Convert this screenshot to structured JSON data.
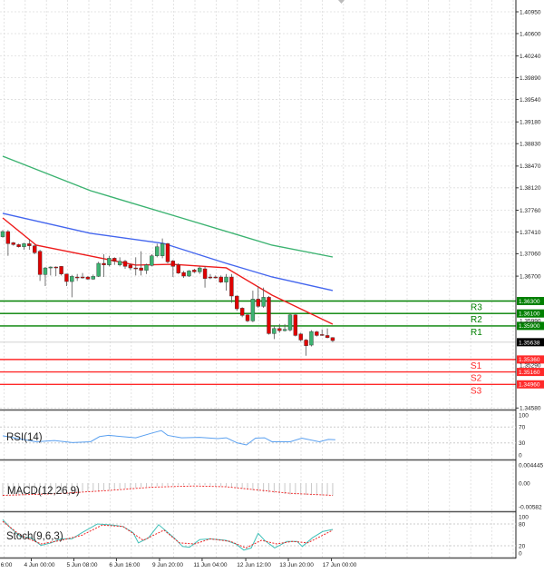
{
  "chart_data": [
    {
      "type": "candlestick",
      "title": "",
      "ylim": [
        1.344,
        1.411
      ],
      "y_ticks": [
        "1.40950",
        "1.40600",
        "1.40240",
        "1.39890",
        "1.39540",
        "1.39180",
        "1.38830",
        "1.38470",
        "1.38120",
        "1.37760",
        "1.37410",
        "1.37060",
        "1.36700",
        "1.34580"
      ],
      "extra_axis_labels": [
        "1.35990",
        "1.35290"
      ],
      "x_tick_labels": [
        {
          "idx": 0.7,
          "label": "6:00"
        },
        {
          "idx": 6.9,
          "label": "4 Jun 00:00"
        },
        {
          "idx": 14.9,
          "label": "5 Jun 08:00"
        },
        {
          "idx": 22.9,
          "label": "6 Jun 16:00"
        },
        {
          "idx": 31.0,
          "label": "9 Jun 20:00"
        },
        {
          "idx": 39.0,
          "label": "11 Jun 04:00"
        },
        {
          "idx": 47.2,
          "label": "12 Jun 12:00"
        },
        {
          "idx": 55.2,
          "label": "13 Jun 20:00"
        },
        {
          "idx": 63.3,
          "label": "17 Jun 00:00"
        }
      ],
      "current_price": "1.35638",
      "levels": [
        {
          "name": "R3",
          "price": 1.363,
          "tag": "1.36300",
          "color": "#008000"
        },
        {
          "name": "R2",
          "price": 1.361,
          "tag": "1.36100",
          "color": "#008000"
        },
        {
          "name": "R1",
          "price": 1.359,
          "tag": "1.35900",
          "color": "#008000"
        },
        {
          "name": "S1",
          "price": 1.3536,
          "tag": "1.35360",
          "color": "#ff2a2a"
        },
        {
          "name": "S2",
          "price": 1.3516,
          "tag": "1.35160",
          "color": "#ff2a2a"
        },
        {
          "name": "S3",
          "price": 1.3496,
          "tag": "1.34960",
          "color": "#ff2a2a"
        }
      ],
      "ohlc": [
        [
          1.37334,
          1.37441,
          1.37319,
          1.37417
        ],
        [
          1.37417,
          1.37441,
          1.37027,
          1.37222
        ],
        [
          1.37237,
          1.3725,
          1.3719,
          1.37207
        ],
        [
          1.37207,
          1.37222,
          1.3716,
          1.37173
        ],
        [
          1.37173,
          1.37237,
          1.37125,
          1.37222
        ],
        [
          1.37222,
          1.37295,
          1.37125,
          1.37188
        ],
        [
          1.37188,
          1.37207,
          1.37052,
          1.37076
        ],
        [
          1.371,
          1.37125,
          1.36623,
          1.36725
        ],
        [
          1.36725,
          1.36847,
          1.3654,
          1.36832
        ],
        [
          1.36832,
          1.36857,
          1.36711,
          1.36847
        ],
        [
          1.36847,
          1.36857,
          1.367,
          1.3684
        ],
        [
          1.36857,
          1.3686,
          1.36711,
          1.36735
        ],
        [
          1.36735,
          1.3674,
          1.3654,
          1.36613
        ],
        [
          1.36613,
          1.3672,
          1.3636,
          1.36696
        ],
        [
          1.36686,
          1.36735,
          1.36623,
          1.36672
        ],
        [
          1.36686,
          1.3675,
          1.36662,
          1.3668
        ],
        [
          1.36686,
          1.367,
          1.3664,
          1.36652
        ],
        [
          1.36652,
          1.36725,
          1.3664,
          1.36696
        ],
        [
          1.36696,
          1.3693,
          1.36686,
          1.36906
        ],
        [
          1.36906,
          1.37052,
          1.36686,
          1.36881
        ],
        [
          1.36881,
          1.37027,
          1.36857,
          1.36988
        ],
        [
          1.36988,
          1.37003,
          1.36881,
          1.3694
        ],
        [
          1.36881,
          1.37003,
          1.36857,
          1.3694
        ],
        [
          1.3694,
          1.3696,
          1.36818,
          1.36857
        ],
        [
          1.36881,
          1.369,
          1.36798,
          1.36832
        ],
        [
          1.36832,
          1.37003,
          1.36711,
          1.36828
        ],
        [
          1.36832,
          1.371,
          1.36711,
          1.36794
        ],
        [
          1.36794,
          1.369,
          1.36735,
          1.36881
        ],
        [
          1.36872,
          1.37052,
          1.36857,
          1.37027
        ],
        [
          1.37027,
          1.37222,
          1.37003,
          1.37173
        ],
        [
          1.37027,
          1.37305,
          1.36988,
          1.37222
        ],
        [
          1.37222,
          1.37237,
          1.36906,
          1.3693
        ],
        [
          1.36944,
          1.3696,
          1.36686,
          1.36857
        ],
        [
          1.36881,
          1.36906,
          1.36735,
          1.3675
        ],
        [
          1.36759,
          1.36784,
          1.36672,
          1.36701
        ],
        [
          1.36701,
          1.36798,
          1.36686,
          1.36784
        ],
        [
          1.36798,
          1.36818,
          1.3675,
          1.36769
        ],
        [
          1.36769,
          1.36857,
          1.36735,
          1.36832
        ],
        [
          1.36818,
          1.36857,
          1.36516,
          1.36662
        ],
        [
          1.36686,
          1.36735,
          1.36652,
          1.36672
        ],
        [
          1.36686,
          1.36711,
          1.36662,
          1.3668
        ],
        [
          1.36686,
          1.36711,
          1.3659,
          1.36604
        ],
        [
          1.36604,
          1.36735,
          1.36467,
          1.36686
        ],
        [
          1.36686,
          1.36735,
          1.36272,
          1.3638
        ],
        [
          1.3638,
          1.3639,
          1.3614,
          1.36175
        ],
        [
          1.36185,
          1.362,
          1.3604,
          1.36068
        ],
        [
          1.36078,
          1.3609,
          1.3596,
          1.3598
        ],
        [
          1.3598,
          1.36467,
          1.3596,
          1.36331
        ],
        [
          1.36331,
          1.3654,
          1.3619,
          1.36214
        ],
        [
          1.36214,
          1.36516,
          1.3619,
          1.3636
        ],
        [
          1.3636,
          1.3638,
          1.3576,
          1.35776
        ],
        [
          1.35776,
          1.359,
          1.35688,
          1.35858
        ],
        [
          1.35858,
          1.3593,
          1.3579,
          1.35824
        ],
        [
          1.35824,
          1.3593,
          1.3581,
          1.35844
        ],
        [
          1.35834,
          1.3609,
          1.3581,
          1.36078
        ],
        [
          1.36078,
          1.3609,
          1.3573,
          1.35746
        ],
        [
          1.35771,
          1.3579,
          1.3565,
          1.35673
        ],
        [
          1.35673,
          1.3569,
          1.3542,
          1.35581
        ],
        [
          1.35591,
          1.3583,
          1.3557,
          1.3581
        ],
        [
          1.35805,
          1.3582,
          1.3573,
          1.35746
        ],
        [
          1.35761,
          1.35844,
          1.3574,
          1.35755
        ],
        [
          1.35746,
          1.3586,
          1.357,
          1.35712
        ],
        [
          1.35712,
          1.3572,
          1.3564,
          1.35664
        ]
      ],
      "moving_averages": [
        {
          "name": "ma-fast",
          "color": "#ee1c1c",
          "points": [
            [
              0,
              1.37636
            ],
            [
              6.3,
              1.37198
            ],
            [
              16.5,
              1.37023
            ],
            [
              25,
              1.36877
            ],
            [
              31.9,
              1.36891
            ],
            [
              42,
              1.36833
            ],
            [
              50.6,
              1.36395
            ],
            [
              62,
              1.35928
            ]
          ]
        },
        {
          "name": "ma-mid",
          "color": "#4466ee",
          "points": [
            [
              0,
              1.37709
            ],
            [
              16.5,
              1.37388
            ],
            [
              30.2,
              1.37227
            ],
            [
              42,
              1.36906
            ],
            [
              50.6,
              1.36687
            ],
            [
              62,
              1.36468
            ]
          ]
        },
        {
          "name": "ma-slow",
          "color": "#3cb371",
          "points": [
            [
              0,
              1.38629
            ],
            [
              16.5,
              1.38074
            ],
            [
              33.6,
              1.37636
            ],
            [
              50.6,
              1.37198
            ],
            [
              62,
              1.37008
            ]
          ]
        }
      ]
    },
    {
      "type": "line",
      "title": "RSI(14)",
      "ylim": [
        0,
        100
      ],
      "y_ticks": [
        "100",
        "70",
        "30",
        "0"
      ],
      "series": [
        {
          "name": "RSI",
          "color": "#5aa0f0",
          "points": [
            [
              0,
              48
            ],
            [
              6.3,
              33
            ],
            [
              9.7,
              36
            ],
            [
              13.1,
              31
            ],
            [
              16.5,
              33
            ],
            [
              18.2,
              46
            ],
            [
              19.9,
              49
            ],
            [
              25,
              43
            ],
            [
              28.1,
              55
            ],
            [
              29.8,
              61
            ],
            [
              31,
              49
            ],
            [
              33.6,
              43
            ],
            [
              37,
              44
            ],
            [
              40.4,
              41
            ],
            [
              42,
              43
            ],
            [
              44.1,
              30
            ],
            [
              45.8,
              25
            ],
            [
              47.5,
              42
            ],
            [
              49.2,
              43
            ],
            [
              50.6,
              33
            ],
            [
              54,
              33
            ],
            [
              56.2,
              42
            ],
            [
              59.5,
              33
            ],
            [
              61.2,
              39
            ],
            [
              62.5,
              38
            ]
          ]
        }
      ]
    },
    {
      "type": "bar+line",
      "title": "MACD(12,26,9)",
      "y_ticks": [
        "0.004445",
        "0.00",
        "-0.00582"
      ],
      "ylim": [
        -0.005823,
        0.004445
      ],
      "histogram_points": [
        [
          0,
          -0.0032
        ],
        [
          10,
          -0.0027
        ],
        [
          20,
          -0.0017
        ],
        [
          28,
          -0.0008
        ],
        [
          36,
          -0.0004
        ],
        [
          42,
          -0.0008
        ],
        [
          48,
          -0.002
        ],
        [
          54,
          -0.0028
        ],
        [
          62,
          -0.0031
        ]
      ],
      "signal": {
        "color": "#ee2222",
        "points": [
          [
            0,
            -0.003
          ],
          [
            10,
            -0.0026
          ],
          [
            20,
            -0.0018
          ],
          [
            28,
            -0.001
          ],
          [
            36,
            -0.0007
          ],
          [
            42,
            -0.0009
          ],
          [
            48,
            -0.0017
          ],
          [
            54,
            -0.0025
          ],
          [
            62,
            -0.003
          ]
        ]
      }
    },
    {
      "type": "line",
      "title": "Stoch(9,6,3)",
      "ylim": [
        0,
        100
      ],
      "y_ticks": [
        "100",
        "80",
        "20",
        "0"
      ],
      "series": [
        {
          "name": "main",
          "color": "#40c0b8",
          "dashed": false,
          "points": [
            [
              0,
              92
            ],
            [
              1.4,
              70
            ],
            [
              3.3,
              46
            ],
            [
              5.3,
              42
            ],
            [
              7.2,
              21
            ],
            [
              9.1,
              28
            ],
            [
              11,
              39
            ],
            [
              13,
              39
            ],
            [
              14.9,
              56
            ],
            [
              17.8,
              80
            ],
            [
              20.7,
              77
            ],
            [
              22.6,
              73
            ],
            [
              24.5,
              56
            ],
            [
              25.5,
              28
            ],
            [
              27.4,
              42
            ],
            [
              29.3,
              78
            ],
            [
              32.2,
              42
            ],
            [
              33.8,
              18
            ],
            [
              35.1,
              16
            ],
            [
              37,
              37
            ],
            [
              39,
              39
            ],
            [
              41.9,
              35
            ],
            [
              43.8,
              25
            ],
            [
              45.3,
              8
            ],
            [
              46.7,
              14
            ],
            [
              48,
              54
            ],
            [
              49.2,
              35
            ],
            [
              51.1,
              14
            ],
            [
              53.4,
              32
            ],
            [
              55.3,
              32
            ],
            [
              56.3,
              18
            ],
            [
              58.2,
              42
            ],
            [
              60.1,
              59
            ],
            [
              62,
              65
            ]
          ]
        },
        {
          "name": "signal",
          "color": "#ee2222",
          "dashed": true,
          "points": [
            [
              0,
              87
            ],
            [
              3.3,
              49
            ],
            [
              7.2,
              25
            ],
            [
              11,
              35
            ],
            [
              14.9,
              49
            ],
            [
              18.7,
              77
            ],
            [
              22.6,
              73
            ],
            [
              26.4,
              35
            ],
            [
              30.3,
              63
            ],
            [
              33.2,
              28
            ],
            [
              36.1,
              25
            ],
            [
              39,
              39
            ],
            [
              42.8,
              32
            ],
            [
              45.7,
              14
            ],
            [
              48.6,
              35
            ],
            [
              51.5,
              25
            ],
            [
              54.4,
              32
            ],
            [
              57.3,
              28
            ],
            [
              61.1,
              56
            ],
            [
              62,
              63
            ]
          ]
        }
      ]
    }
  ]
}
